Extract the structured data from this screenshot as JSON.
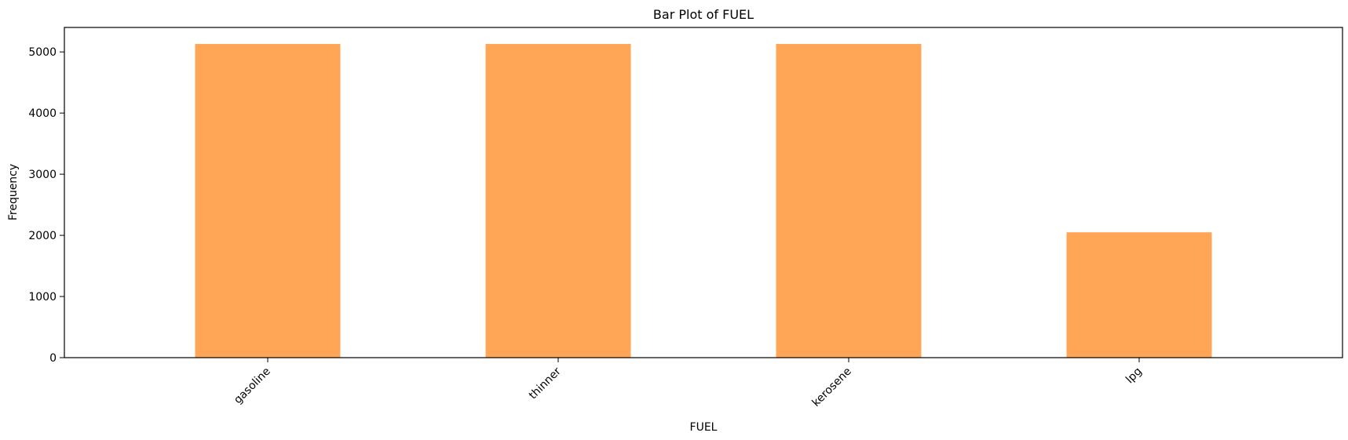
{
  "chart_data": {
    "type": "bar",
    "title": "Bar Plot of FUEL",
    "xlabel": "FUEL",
    "ylabel": "Frequency",
    "categories": [
      "gasoline",
      "thinner",
      "kerosene",
      "lpg"
    ],
    "values": [
      5130,
      5130,
      5130,
      2050
    ],
    "ylim": [
      0,
      5400
    ],
    "yticks": [
      0,
      1000,
      2000,
      3000,
      4000,
      5000
    ],
    "bar_color": "#ffa556",
    "grid": false,
    "xtick_rotation": 45
  }
}
